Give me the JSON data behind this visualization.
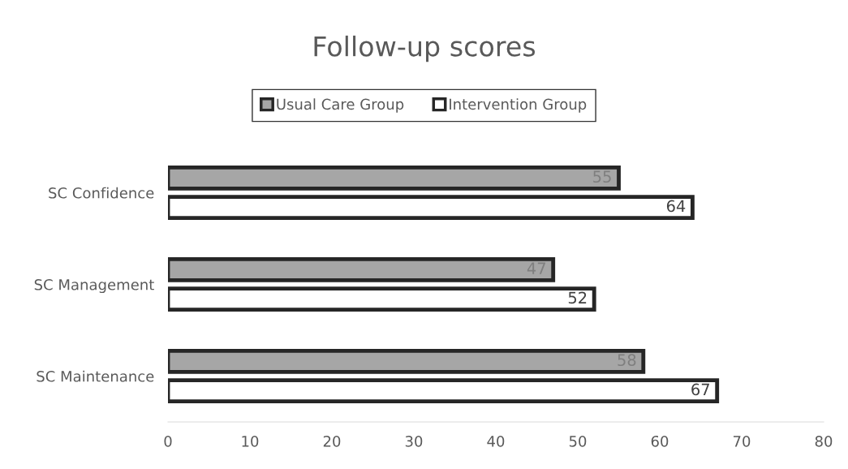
{
  "chart_data": {
    "type": "bar",
    "orientation": "horizontal",
    "title": "Follow-up scores",
    "categories": [
      "SC Confidence",
      "SC Management",
      "SC Maintenance"
    ],
    "series": [
      {
        "name": "Usual Care Group",
        "color": "#a6a6a6",
        "values": [
          55,
          47,
          58
        ]
      },
      {
        "name": "Intervention Group",
        "color": "#ffffff",
        "values": [
          64,
          52,
          67
        ]
      }
    ],
    "xlim": [
      0,
      80
    ],
    "xticks": [
      0,
      10,
      20,
      30,
      40,
      50,
      60,
      70,
      80
    ],
    "data_labels": true,
    "legend": "top",
    "grid": false
  }
}
